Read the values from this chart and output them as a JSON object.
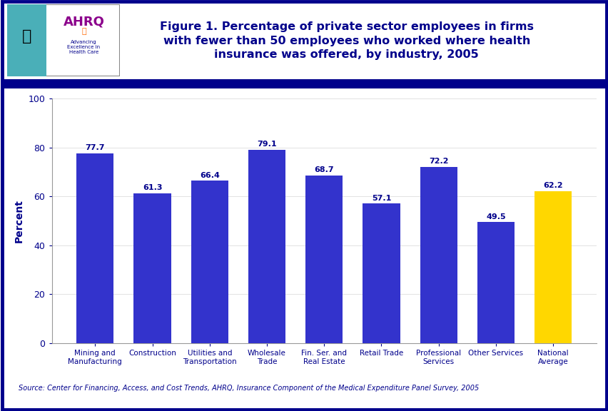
{
  "title": "Figure 1. Percentage of private sector employees in firms\nwith fewer than 50 employees who worked where health\ninsurance was offered, by industry, 2005",
  "categories": [
    "Mining and\nManufacturing",
    "Construction",
    "Utilities and\nTransportation",
    "Wholesale\nTrade",
    "Fin. Ser. and\nReal Estate",
    "Retail Trade",
    "Professional\nServices",
    "Other Services",
    "National\nAverage"
  ],
  "values": [
    77.7,
    61.3,
    66.4,
    79.1,
    68.7,
    57.1,
    72.2,
    49.5,
    62.2
  ],
  "ylabel": "Percent",
  "ylim": [
    0,
    100
  ],
  "yticks": [
    0,
    20,
    40,
    60,
    80,
    100
  ],
  "source_text": "Source: Center for Financing, Access, and Cost Trends, AHRQ, Insurance Component of the Medical Expenditure Panel Survey, 2005",
  "outer_border_color": "#00008B",
  "title_color": "#00008B",
  "bar_label_color": "#00008B",
  "ylabel_color": "#00008B",
  "tick_label_color": "#00008B",
  "background_color": "#FFFFFF",
  "blue_bar_color": "#3333CC",
  "gold_bar_color": "#FFD700",
  "separator_color": "#00008B",
  "grid_color": "#DDDDDD"
}
